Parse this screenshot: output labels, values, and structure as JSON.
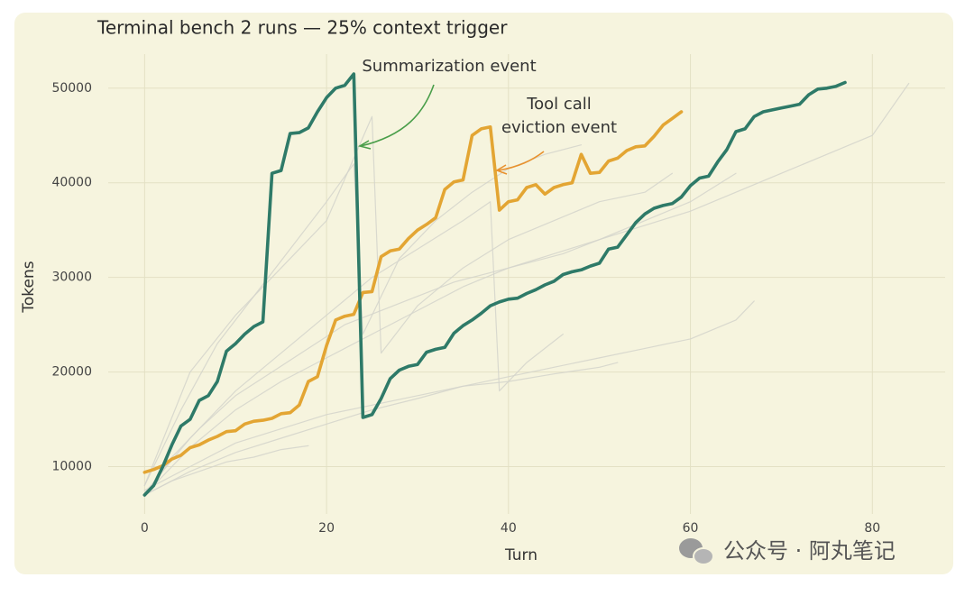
{
  "chart_data": {
    "type": "line",
    "title": "Terminal bench 2 runs — 25% context trigger",
    "x_label": "Turn",
    "y_label": "Tokens",
    "xlim": [
      -4,
      88
    ],
    "ylim": [
      5000,
      53600
    ],
    "xticks": [
      0,
      20,
      40,
      60,
      80
    ],
    "yticks": [
      10000,
      20000,
      30000,
      40000,
      50000
    ],
    "grid": true,
    "annotations": [
      {
        "text": "Summarization event",
        "color": "#4a9e4a"
      },
      {
        "text": "Tool call",
        "color": "#e8912d"
      },
      {
        "text": "eviction event",
        "color": "#e8912d"
      }
    ],
    "watermark": "公众号 · 阿丸笔记",
    "series": [
      {
        "color": "#d3d3cb",
        "x": [
          0,
          5,
          10,
          15,
          20,
          25,
          30,
          35,
          40,
          45,
          50,
          55,
          60,
          65,
          70,
          75,
          80,
          84
        ],
        "values": [
          7000,
          12000,
          16000,
          19000,
          21500,
          24000,
          26500,
          29000,
          31000,
          32500,
          34000,
          35500,
          37000,
          39000,
          41000,
          43000,
          45000,
          50500
        ]
      },
      {
        "color": "#d3d3cb",
        "x": [
          0,
          5,
          10,
          15,
          20,
          25,
          30,
          35,
          40,
          45,
          50,
          52
        ],
        "values": [
          7500,
          10000,
          12500,
          14000,
          15500,
          16500,
          17500,
          18500,
          19000,
          19800,
          20500,
          21000
        ]
      },
      {
        "color": "#d3d3cb",
        "x": [
          0,
          5,
          10,
          15,
          20,
          25,
          30,
          35,
          40,
          45,
          50,
          55,
          60,
          65,
          67
        ],
        "values": [
          7000,
          9500,
          11500,
          13000,
          14500,
          16000,
          17200,
          18500,
          19500,
          20500,
          21500,
          22500,
          23500,
          25500,
          27500
        ]
      },
      {
        "color": "#d3d3cb",
        "x": [
          0,
          4,
          8,
          12,
          16,
          20,
          23,
          24,
          28,
          32,
          36,
          40,
          44,
          48
        ],
        "values": [
          8000,
          16000,
          23000,
          28000,
          33000,
          38000,
          42000,
          24000,
          32000,
          36000,
          39000,
          41500,
          43000,
          44000
        ]
      },
      {
        "color": "#d3d3cb",
        "x": [
          0,
          5,
          10,
          15,
          20,
          25,
          30,
          35,
          38,
          39,
          42,
          46
        ],
        "values": [
          7200,
          13000,
          18000,
          22000,
          26000,
          30000,
          33000,
          36000,
          38000,
          18000,
          21000,
          24000
        ]
      },
      {
        "color": "#d3d3cb",
        "x": [
          0,
          3,
          6,
          10,
          14,
          18,
          22,
          26,
          30,
          34,
          38,
          42,
          46,
          50,
          55,
          60,
          65
        ],
        "values": [
          6800,
          11000,
          14000,
          17500,
          20000,
          22500,
          25000,
          26500,
          28000,
          29500,
          30500,
          31500,
          32500,
          34000,
          36000,
          38000,
          41000
        ]
      },
      {
        "color": "#d3d3cb",
        "x": [
          0,
          5,
          10,
          15,
          20,
          25,
          26,
          30,
          35,
          40,
          45,
          50,
          55,
          58
        ],
        "values": [
          8000,
          20000,
          26000,
          31000,
          36000,
          47000,
          22000,
          27000,
          31000,
          34000,
          36000,
          38000,
          39000,
          41000
        ]
      },
      {
        "color": "#d3d3cb",
        "x": [
          0,
          3,
          6,
          9,
          12,
          15,
          18
        ],
        "values": [
          7000,
          8500,
          9500,
          10500,
          11000,
          11800,
          12200
        ]
      },
      {
        "color": "#e3a533",
        "x": [
          0,
          1,
          2,
          3,
          4,
          5,
          6,
          7,
          8,
          9,
          10,
          11,
          12,
          13,
          14,
          15,
          16,
          17,
          18,
          19,
          20,
          21,
          22,
          23,
          24,
          25,
          26,
          27,
          28,
          29,
          30,
          31,
          32,
          33,
          34,
          35,
          36,
          37,
          38,
          39,
          40,
          41,
          42,
          43,
          44,
          45,
          46,
          47,
          48,
          49,
          50,
          51,
          52,
          53,
          54,
          55,
          56,
          57,
          58,
          59
        ],
        "values": [
          9400,
          9700,
          10100,
          10800,
          11200,
          12000,
          12300,
          12800,
          13200,
          13700,
          13800,
          14500,
          14800,
          14900,
          15100,
          15600,
          15700,
          16500,
          19000,
          19500,
          22800,
          25500,
          25900,
          26100,
          28400,
          28500,
          32200,
          32800,
          33000,
          34100,
          35000,
          35600,
          36300,
          39300,
          40100,
          40300,
          45000,
          45700,
          45900,
          37100,
          38000,
          38200,
          39500,
          39800,
          38800,
          39500,
          39800,
          40000,
          43000,
          41000,
          41100,
          42300,
          42600,
          43400,
          43800,
          43900,
          44900,
          46100,
          46800,
          47500
        ]
      },
      {
        "color": "#2e7a68",
        "x": [
          0,
          1,
          2,
          3,
          4,
          5,
          6,
          7,
          8,
          9,
          10,
          11,
          12,
          13,
          14,
          15,
          16,
          17,
          18,
          19,
          20,
          21,
          22,
          23,
          24,
          25,
          26,
          27,
          28,
          29,
          30,
          31,
          32,
          33,
          34,
          35,
          36,
          37,
          38,
          39,
          40,
          41,
          42,
          43,
          44,
          45,
          46,
          47,
          48,
          49,
          50,
          51,
          52,
          53,
          54,
          55,
          56,
          57,
          58,
          59,
          60,
          61,
          62,
          63,
          64,
          65,
          66,
          67,
          68,
          69,
          70,
          71,
          72,
          73,
          74,
          75,
          76,
          77
        ],
        "values": [
          7000,
          8000,
          10000,
          12300,
          14300,
          15000,
          17000,
          17500,
          19000,
          22200,
          23000,
          24000,
          24800,
          25300,
          41000,
          41300,
          45200,
          45300,
          45800,
          47500,
          49000,
          50000,
          50300,
          51500,
          15200,
          15500,
          17200,
          19300,
          20200,
          20600,
          20800,
          22100,
          22400,
          22600,
          24100,
          24900,
          25500,
          26200,
          27000,
          27400,
          27700,
          27800,
          28300,
          28700,
          29200,
          29600,
          30300,
          30600,
          30800,
          31200,
          31500,
          33000,
          33200,
          34500,
          35800,
          36700,
          37300,
          37600,
          37800,
          38500,
          39700,
          40500,
          40700,
          42200,
          43500,
          45400,
          45700,
          47000,
          47500,
          47700,
          47900,
          48100,
          48300,
          49300,
          49900,
          50000,
          50200,
          50600
        ]
      }
    ]
  }
}
